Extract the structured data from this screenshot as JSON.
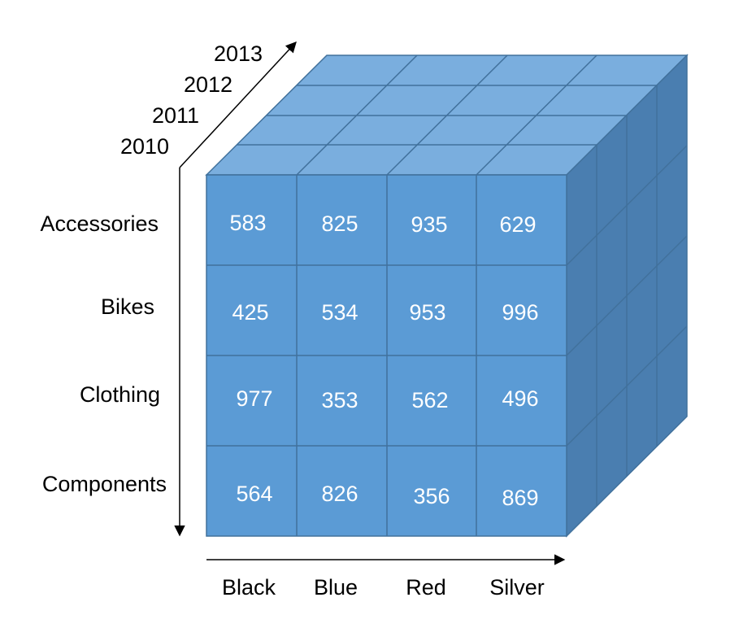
{
  "diagram": {
    "type": "olap-cube",
    "years": [
      "2010",
      "2011",
      "2012",
      "2013"
    ],
    "categories": [
      "Accessories",
      "Bikes",
      "Clothing",
      "Components"
    ],
    "colors_labels": [
      "Black",
      "Blue",
      "Red",
      "Silver"
    ],
    "values": [
      [
        "583",
        "825",
        "935",
        "629"
      ],
      [
        "425",
        "534",
        "953",
        "996"
      ],
      [
        "977",
        "353",
        "562",
        "496"
      ],
      [
        "564",
        "826",
        "356",
        "869"
      ]
    ],
    "palette": {
      "front": "#5B9BD5",
      "top": "#7AAEDE",
      "side": "#4A7EB0",
      "edge": "#41719C",
      "arrow": "#000000"
    }
  }
}
